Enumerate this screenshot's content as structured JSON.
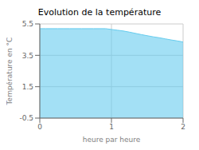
{
  "chart_data": {
    "type": "area",
    "title": "Evolution de la température",
    "xlabel": "heure par heure",
    "ylabel": "Température en °C",
    "x": [
      0.0,
      0.083,
      0.167,
      0.25,
      0.333,
      0.417,
      0.5,
      0.583,
      0.667,
      0.75,
      0.833,
      0.917,
      1.0,
      1.083,
      1.167,
      1.25,
      1.333,
      1.417,
      1.5,
      1.583,
      1.667,
      1.75,
      1.833,
      1.917,
      2.0
    ],
    "values": [
      5.2,
      5.2,
      5.2,
      5.2,
      5.2,
      5.2,
      5.2,
      5.2,
      5.2,
      5.2,
      5.2,
      5.2,
      5.15,
      5.1,
      5.05,
      4.98,
      4.9,
      4.82,
      4.75,
      4.68,
      4.62,
      4.55,
      4.48,
      4.42,
      4.35
    ],
    "color": "#66ccee",
    "xlim": [
      0,
      2
    ],
    "ylim": [
      -0.5,
      5.5
    ],
    "xticks": [
      0,
      1,
      2
    ],
    "yticks": [
      -0.5,
      1.5,
      3.5,
      5.5
    ],
    "grid": true
  }
}
